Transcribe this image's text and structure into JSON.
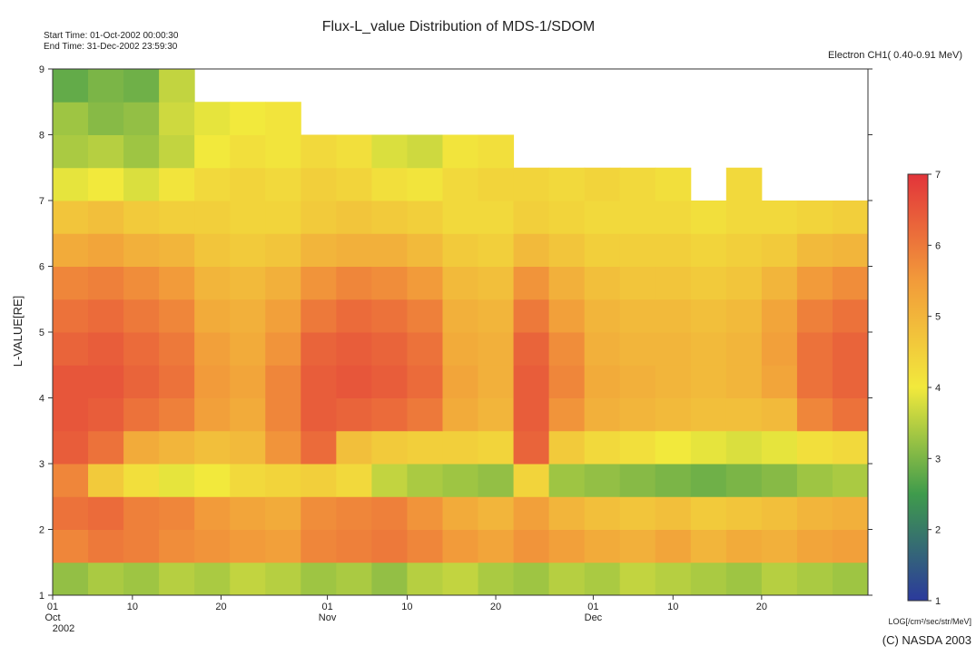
{
  "chart_data": {
    "type": "heatmap",
    "title": "Flux-L_value Distribution of MDS-1/SDOM",
    "start_time": "Start Time: 01-Oct-2002 00:00:30",
    "end_time": "End  Time: 31-Dec-2002 23:59:30",
    "channel": "Electron CH1( 0.40-0.91 MeV)",
    "y_label": "L-VALUE[RE]",
    "colorbar_label": "LOG[/cm²/sec/str/MeV]",
    "copyright": "(C) NASDA 2003",
    "xlim": [
      0,
      92
    ],
    "ylim": [
      1,
      9
    ],
    "zlim": [
      1,
      7
    ],
    "xticks": [
      {
        "value": 0,
        "label": "01"
      },
      {
        "value": 9,
        "label": "10"
      },
      {
        "value": 19,
        "label": "20"
      },
      {
        "value": 31,
        "label": "01"
      },
      {
        "value": 40,
        "label": "10"
      },
      {
        "value": 50,
        "label": "20"
      },
      {
        "value": 61,
        "label": "01"
      },
      {
        "value": 70,
        "label": "10"
      },
      {
        "value": 80,
        "label": "20"
      }
    ],
    "month_labels": [
      {
        "value": 0,
        "label": "Oct"
      },
      {
        "value": 31,
        "label": "Nov"
      },
      {
        "value": 61,
        "label": "Dec"
      }
    ],
    "year_label": {
      "value": 0,
      "label": "2002"
    },
    "yticks": [
      1,
      2,
      3,
      4,
      5,
      6,
      7,
      8,
      9
    ],
    "zticks": [
      1,
      2,
      3,
      4,
      5,
      6,
      7
    ],
    "colormap": [
      "#2b3a9c",
      "#3f9b4c",
      "#f2e93c",
      "#f29b3a",
      "#e2343a"
    ],
    "x_bins": [
      0,
      4,
      8,
      12,
      16,
      20,
      24,
      28,
      32,
      36,
      40,
      44,
      48,
      52,
      56,
      60,
      64,
      68,
      72,
      76,
      80,
      84,
      88,
      92
    ],
    "y_bins": [
      1,
      1.5,
      2,
      2.5,
      3,
      3.5,
      4,
      4.5,
      5,
      5.5,
      6,
      6.5,
      7,
      7.5,
      8,
      8.5,
      9
    ],
    "values": [
      [
        3.2,
        3.4,
        3.3,
        3.5,
        3.4,
        3.6,
        3.5,
        3.3,
        3.4,
        3.2,
        3.5,
        3.6,
        3.4,
        3.3,
        3.5,
        3.4,
        3.6,
        3.5,
        3.4,
        3.3,
        3.5,
        3.4,
        3.3
      ],
      [
        5.8,
        6.0,
        5.9,
        5.7,
        5.6,
        5.5,
        5.4,
        5.8,
        5.9,
        6.0,
        5.8,
        5.5,
        5.3,
        5.6,
        5.4,
        5.2,
        5.1,
        5.3,
        5.0,
        5.2,
        5.1,
        5.3,
        5.4
      ],
      [
        6.1,
        6.2,
        5.9,
        5.8,
        5.5,
        5.3,
        5.2,
        5.7,
        5.8,
        5.9,
        5.6,
        5.2,
        5.0,
        5.4,
        5.0,
        4.8,
        4.7,
        4.8,
        4.6,
        4.7,
        4.8,
        5.0,
        5.1
      ],
      [
        5.8,
        4.6,
        4.2,
        3.9,
        4.0,
        4.3,
        4.4,
        4.5,
        4.3,
        3.6,
        3.4,
        3.3,
        3.2,
        4.4,
        3.3,
        3.2,
        3.1,
        3.0,
        2.9,
        3.0,
        3.1,
        3.3,
        3.4
      ],
      [
        6.4,
        6.1,
        5.2,
        5.0,
        4.8,
        4.9,
        5.6,
        6.2,
        4.8,
        4.6,
        4.5,
        4.5,
        4.4,
        6.3,
        4.6,
        4.3,
        4.2,
        4.0,
        3.9,
        3.8,
        3.9,
        4.2,
        4.3
      ],
      [
        6.5,
        6.4,
        6.1,
        5.9,
        5.4,
        5.2,
        5.8,
        6.4,
        6.3,
        6.2,
        6.0,
        5.2,
        5.0,
        6.4,
        5.6,
        5.1,
        5.0,
        4.9,
        4.8,
        4.8,
        4.9,
        5.8,
        6.1
      ],
      [
        6.5,
        6.5,
        6.3,
        6.1,
        5.5,
        5.3,
        5.8,
        6.4,
        6.5,
        6.4,
        6.2,
        5.3,
        5.1,
        6.4,
        5.8,
        5.2,
        5.1,
        5.0,
        4.9,
        5.0,
        5.3,
        6.1,
        6.3
      ],
      [
        6.3,
        6.4,
        6.2,
        6.0,
        5.4,
        5.2,
        5.6,
        6.3,
        6.4,
        6.3,
        6.1,
        5.2,
        5.1,
        6.3,
        5.7,
        5.1,
        5.0,
        5.0,
        4.9,
        5.0,
        5.4,
        6.1,
        6.3
      ],
      [
        6.1,
        6.2,
        6.0,
        5.8,
        5.2,
        5.1,
        5.4,
        6.0,
        6.2,
        6.1,
        5.9,
        5.1,
        5.0,
        6.0,
        5.4,
        5.0,
        4.9,
        4.9,
        4.8,
        4.9,
        5.3,
        5.9,
        6.1
      ],
      [
        5.8,
        5.9,
        5.7,
        5.5,
        5.0,
        4.9,
        5.1,
        5.6,
        5.8,
        5.7,
        5.5,
        4.9,
        4.8,
        5.6,
        5.1,
        4.8,
        4.7,
        4.7,
        4.6,
        4.7,
        5.0,
        5.5,
        5.7
      ],
      [
        5.2,
        5.3,
        5.1,
        5.0,
        4.7,
        4.6,
        4.7,
        5.0,
        5.1,
        5.1,
        4.9,
        4.6,
        4.5,
        4.9,
        4.7,
        4.5,
        4.5,
        4.5,
        4.4,
        4.5,
        4.6,
        4.9,
        5.0
      ],
      [
        4.7,
        4.8,
        4.6,
        4.5,
        4.5,
        4.4,
        4.4,
        4.6,
        4.7,
        4.6,
        4.5,
        4.3,
        4.3,
        4.5,
        4.4,
        4.3,
        4.3,
        4.3,
        4.2,
        4.3,
        4.3,
        4.4,
        4.5
      ],
      [
        3.9,
        4.0,
        3.8,
        4.1,
        4.3,
        4.4,
        4.3,
        4.5,
        4.4,
        4.2,
        4.1,
        4.3,
        4.4,
        4.4,
        4.3,
        4.4,
        4.3,
        4.2,
        null,
        4.3,
        null,
        null,
        null
      ],
      [
        3.4,
        3.5,
        3.3,
        3.6,
        4.0,
        4.2,
        4.1,
        4.3,
        4.2,
        3.8,
        3.7,
        4.1,
        4.2,
        null,
        null,
        null,
        null,
        null,
        null,
        null,
        null,
        null,
        null
      ],
      [
        3.3,
        3.1,
        3.2,
        3.7,
        3.9,
        4.0,
        4.1,
        null,
        null,
        null,
        null,
        null,
        null,
        null,
        null,
        null,
        null,
        null,
        null,
        null,
        null,
        null,
        null
      ],
      [
        2.8,
        3.0,
        2.9,
        3.6,
        null,
        null,
        null,
        null,
        null,
        null,
        null,
        null,
        null,
        null,
        null,
        null,
        null,
        null,
        null,
        null,
        null,
        null,
        null
      ]
    ]
  }
}
